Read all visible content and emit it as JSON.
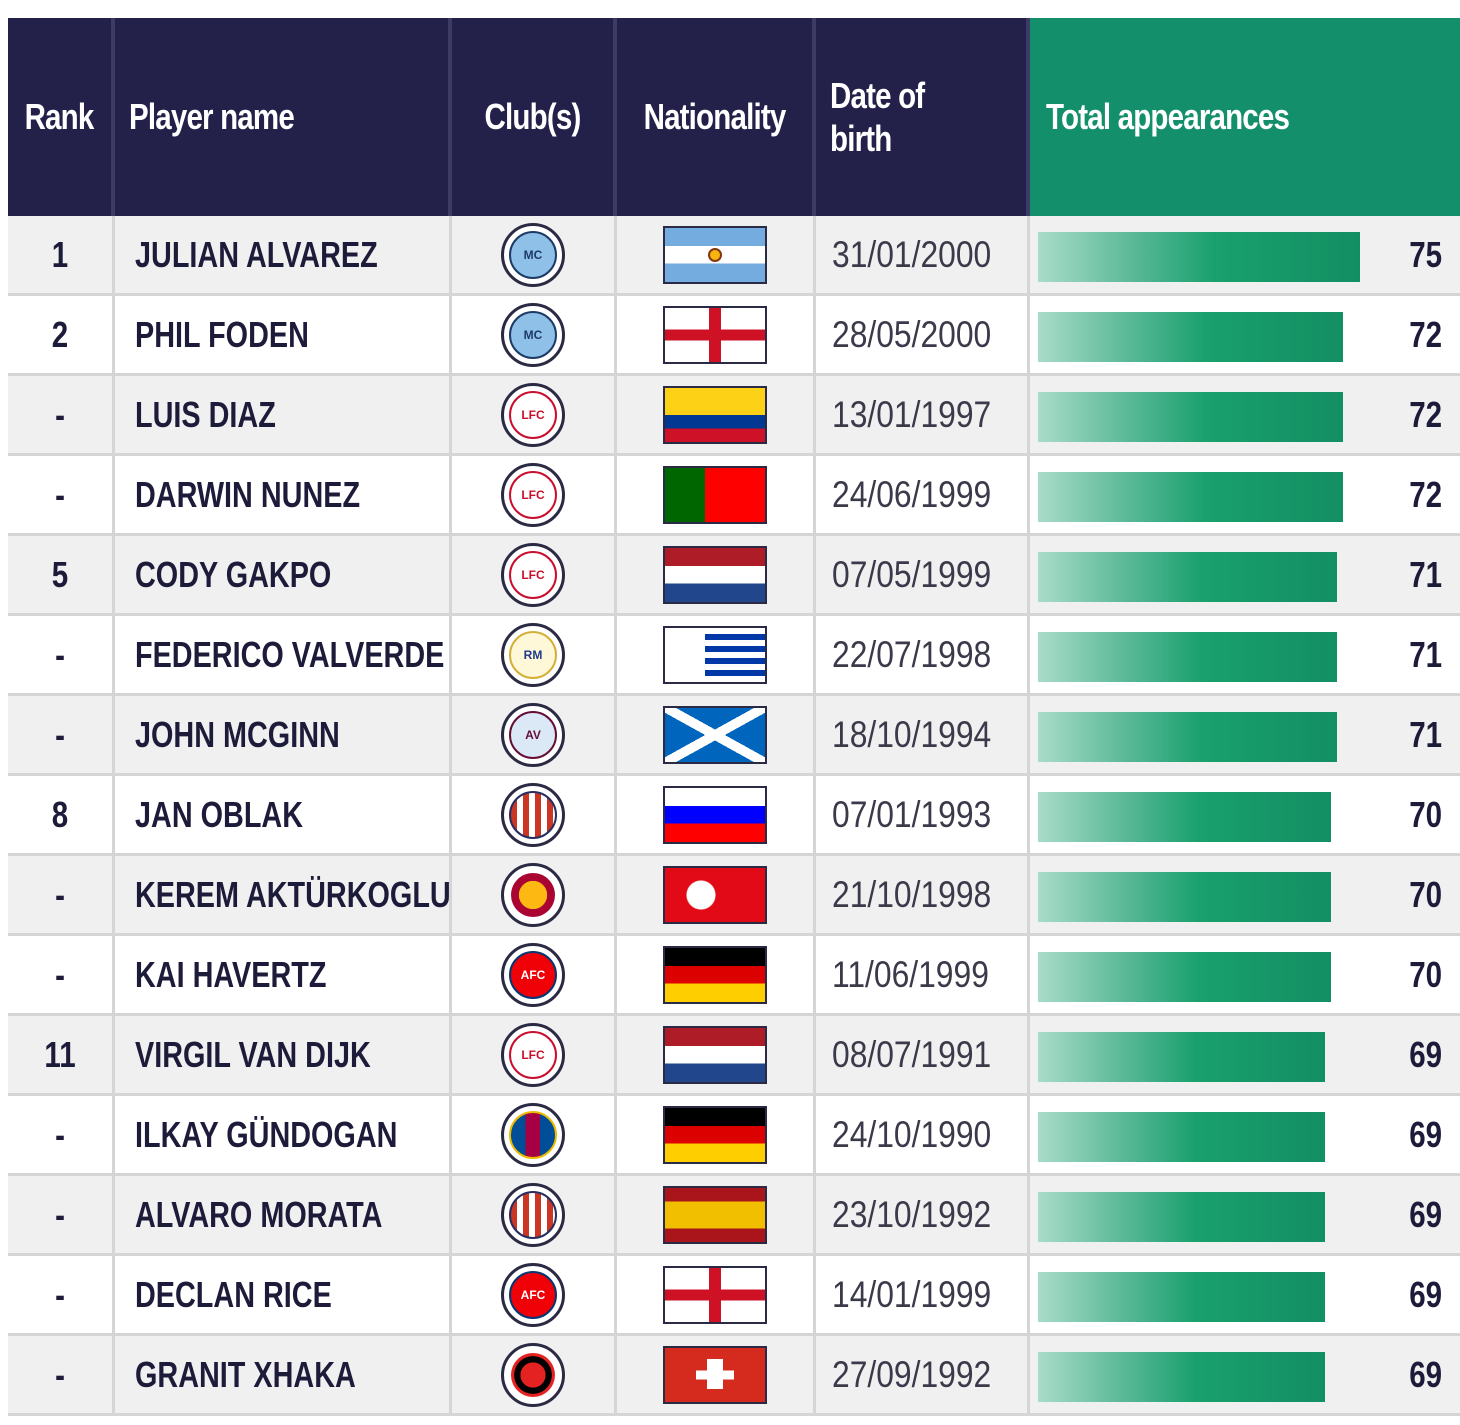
{
  "headers": {
    "rank": "Rank",
    "player": "Player name",
    "club": "Club(s)",
    "nationality": "Nationality",
    "dob": "Date of birth",
    "apps": "Total appearances"
  },
  "colors": {
    "header_bg": "#23214a",
    "accent_header_bg": "#138f6b",
    "bar_gradient_start": "#a9dcc8",
    "bar_gradient_end": "#138f63"
  },
  "chart_data": {
    "type": "table",
    "columns": [
      "Rank",
      "Player name",
      "Club(s)",
      "Nationality",
      "Date of birth",
      "Total appearances"
    ],
    "rows": [
      {
        "rank": "1",
        "player": "JULIAN ALVAREZ",
        "club_icon": "man-city-crest-icon",
        "flag_icon": "argentina-flag-icon",
        "dob": "31/01/2000",
        "apps": 75
      },
      {
        "rank": "2",
        "player": "PHIL FODEN",
        "club_icon": "man-city-crest-icon",
        "flag_icon": "england-flag-icon",
        "dob": "28/05/2000",
        "apps": 72
      },
      {
        "rank": "-",
        "player": "LUIS DIAZ",
        "club_icon": "liverpool-crest-icon",
        "flag_icon": "colombia-flag-icon",
        "dob": "13/01/1997",
        "apps": 72
      },
      {
        "rank": "-",
        "player": "DARWIN NUNEZ",
        "club_icon": "liverpool-crest-icon",
        "flag_icon": "portugal-flag-icon",
        "dob": "24/06/1999",
        "apps": 72
      },
      {
        "rank": "5",
        "player": "CODY GAKPO",
        "club_icon": "liverpool-crest-icon",
        "flag_icon": "netherlands-flag-icon",
        "dob": "07/05/1999",
        "apps": 71
      },
      {
        "rank": "-",
        "player": "FEDERICO VALVERDE",
        "club_icon": "real-madrid-crest-icon",
        "flag_icon": "uruguay-flag-icon",
        "dob": "22/07/1998",
        "apps": 71
      },
      {
        "rank": "-",
        "player": "JOHN MCGINN",
        "club_icon": "aston-villa-crest-icon",
        "flag_icon": "scotland-flag-icon",
        "dob": "18/10/1994",
        "apps": 71
      },
      {
        "rank": "8",
        "player": "JAN OBLAK",
        "club_icon": "atletico-madrid-crest-icon",
        "flag_icon": "slovenia-flag-icon",
        "dob": "07/01/1993",
        "apps": 70
      },
      {
        "rank": "-",
        "player": "KEREM AKTÜRKOGLU",
        "club_icon": "galatasaray-crest-icon",
        "flag_icon": "turkey-flag-icon",
        "dob": "21/10/1998",
        "apps": 70
      },
      {
        "rank": "-",
        "player": "KAI HAVERTZ",
        "club_icon": "arsenal-crest-icon",
        "flag_icon": "germany-flag-icon",
        "dob": "11/06/1999",
        "apps": 70
      },
      {
        "rank": "11",
        "player": "VIRGIL VAN DIJK",
        "club_icon": "liverpool-crest-icon",
        "flag_icon": "netherlands-flag-icon",
        "dob": "08/07/1991",
        "apps": 69
      },
      {
        "rank": "-",
        "player": "ILKAY GÜNDOGAN",
        "club_icon": "barcelona-crest-icon",
        "flag_icon": "germany-flag-icon",
        "dob": "24/10/1990",
        "apps": 69
      },
      {
        "rank": "-",
        "player": "ALVARO MORATA",
        "club_icon": "atletico-madrid-crest-icon",
        "flag_icon": "spain-flag-icon",
        "dob": "23/10/1992",
        "apps": 69
      },
      {
        "rank": "-",
        "player": "DECLAN RICE",
        "club_icon": "arsenal-crest-icon",
        "flag_icon": "england-flag-icon",
        "dob": "14/01/1999",
        "apps": 69
      },
      {
        "rank": "-",
        "player": "GRANIT XHAKA",
        "club_icon": "leverkusen-crest-icon",
        "flag_icon": "switzerland-flag-icon",
        "dob": "27/09/1992",
        "apps": 69
      }
    ],
    "bar_scale_max": 75
  }
}
